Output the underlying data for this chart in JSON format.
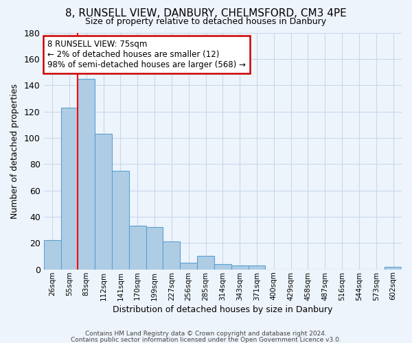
{
  "title": "8, RUNSELL VIEW, DANBURY, CHELMSFORD, CM3 4PE",
  "subtitle": "Size of property relative to detached houses in Danbury",
  "xlabel": "Distribution of detached houses by size in Danbury",
  "ylabel": "Number of detached properties",
  "bar_labels": [
    "26sqm",
    "55sqm",
    "83sqm",
    "112sqm",
    "141sqm",
    "170sqm",
    "199sqm",
    "227sqm",
    "256sqm",
    "285sqm",
    "314sqm",
    "343sqm",
    "371sqm",
    "400sqm",
    "429sqm",
    "458sqm",
    "487sqm",
    "516sqm",
    "544sqm",
    "573sqm",
    "602sqm"
  ],
  "bar_values": [
    22,
    123,
    145,
    103,
    75,
    33,
    32,
    21,
    5,
    10,
    4,
    3,
    3,
    0,
    0,
    0,
    0,
    0,
    0,
    0,
    2
  ],
  "bar_color": "#aecde4",
  "bar_edge_color": "#5a9fd4",
  "grid_color": "#c8d8eb",
  "background_color": "#eef4fb",
  "red_line_x": 1.5,
  "annotation_text": "8 RUNSELL VIEW: 75sqm\n← 2% of detached houses are smaller (12)\n98% of semi-detached houses are larger (568) →",
  "annotation_box_color": "#ffffff",
  "annotation_box_edge": "#cc0000",
  "ylim": [
    0,
    180
  ],
  "yticks": [
    0,
    20,
    40,
    60,
    80,
    100,
    120,
    140,
    160,
    180
  ],
  "footer1": "Contains HM Land Registry data © Crown copyright and database right 2024.",
  "footer2": "Contains public sector information licensed under the Open Government Licence v3.0."
}
